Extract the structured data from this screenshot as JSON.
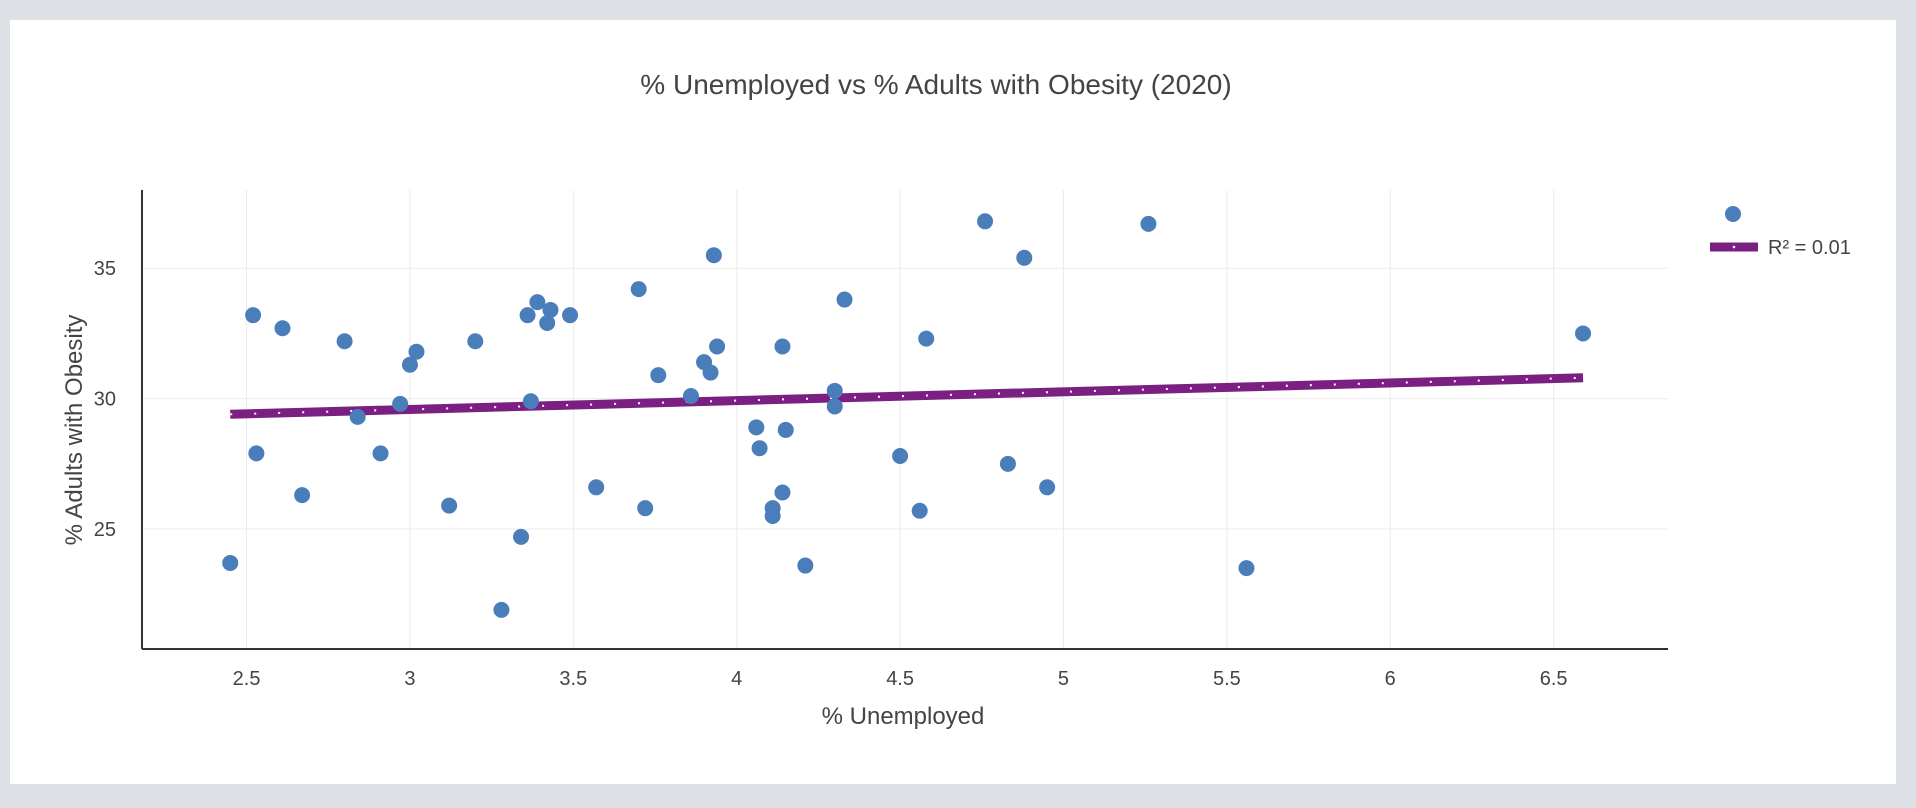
{
  "chart_data": {
    "type": "scatter",
    "title": "% Unemployed vs % Adults with Obesity (2020)",
    "xlabel": "% Unemployed",
    "ylabel": "% Adults with Obesity",
    "xlim": [
      2.18,
      6.85
    ],
    "ylim": [
      20.4,
      38.0
    ],
    "xticks": [
      "2.5",
      "3",
      "3.5",
      "4",
      "4.5",
      "5",
      "5.5",
      "6",
      "6.5"
    ],
    "yticks": [
      "25",
      "30",
      "35"
    ],
    "grid": true,
    "legend_position": "top-right",
    "colors": {
      "points": "#4a7ebb",
      "trendline": "#7b1f82",
      "grid": "#ebebeb",
      "axis": "#333333"
    },
    "series": [
      {
        "kind": "markers",
        "points": [
          [
            2.45,
            23.7
          ],
          [
            2.52,
            33.2
          ],
          [
            2.53,
            27.9
          ],
          [
            2.61,
            32.7
          ],
          [
            2.67,
            26.3
          ],
          [
            2.8,
            32.2
          ],
          [
            2.84,
            29.3
          ],
          [
            2.91,
            27.9
          ],
          [
            2.97,
            29.8
          ],
          [
            3.0,
            31.3
          ],
          [
            3.02,
            31.8
          ],
          [
            3.12,
            25.9
          ],
          [
            3.2,
            32.2
          ],
          [
            3.28,
            21.9
          ],
          [
            3.34,
            24.7
          ],
          [
            3.36,
            33.2
          ],
          [
            3.37,
            29.9
          ],
          [
            3.39,
            33.7
          ],
          [
            3.42,
            32.9
          ],
          [
            3.43,
            33.4
          ],
          [
            3.49,
            33.2
          ],
          [
            3.57,
            26.6
          ],
          [
            3.7,
            34.2
          ],
          [
            3.72,
            25.8
          ],
          [
            3.76,
            30.9
          ],
          [
            3.86,
            30.1
          ],
          [
            3.9,
            31.4
          ],
          [
            3.92,
            31.0
          ],
          [
            3.93,
            35.5
          ],
          [
            3.94,
            32.0
          ],
          [
            4.06,
            28.9
          ],
          [
            4.07,
            28.1
          ],
          [
            4.11,
            25.8
          ],
          [
            4.11,
            25.5
          ],
          [
            4.14,
            32.0
          ],
          [
            4.14,
            26.4
          ],
          [
            4.15,
            28.8
          ],
          [
            4.21,
            23.6
          ],
          [
            4.3,
            30.3
          ],
          [
            4.3,
            29.7
          ],
          [
            4.33,
            33.8
          ],
          [
            4.5,
            27.8
          ],
          [
            4.56,
            25.7
          ],
          [
            4.58,
            32.3
          ],
          [
            4.76,
            36.8
          ],
          [
            4.83,
            27.5
          ],
          [
            4.88,
            35.4
          ],
          [
            4.95,
            26.6
          ],
          [
            5.26,
            36.7
          ],
          [
            5.56,
            23.5
          ],
          [
            6.59,
            32.5
          ]
        ]
      },
      {
        "kind": "trendline",
        "name": "R² = 0.01",
        "x": [
          2.45,
          6.59
        ],
        "y": [
          29.4,
          30.8
        ]
      }
    ]
  }
}
